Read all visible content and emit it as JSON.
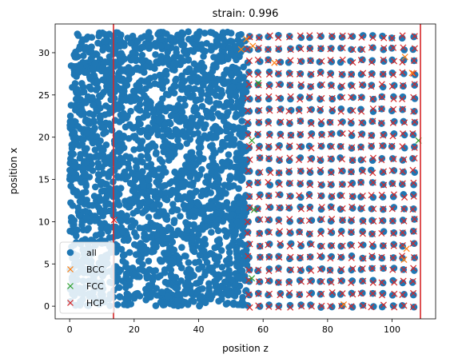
{
  "chart_data": {
    "type": "scatter",
    "title": "strain: 0.996",
    "xlabel": "position z",
    "ylabel": "position x",
    "xlim": [
      -4.5,
      113.5
    ],
    "ylim": [
      -1.5,
      33.4
    ],
    "xticks": [
      0,
      20,
      40,
      60,
      80,
      100
    ],
    "yticks": [
      0,
      5,
      10,
      15,
      20,
      25,
      30
    ],
    "grid": false,
    "legend": "lower-left",
    "vlines": [
      {
        "x": 13.6,
        "color": "#d62728"
      },
      {
        "x": 108.8,
        "color": "#d62728"
      }
    ],
    "series": [
      {
        "name": "all",
        "marker": "circle",
        "color": "#1f77b4",
        "regions": [
          {
            "x_range": [
              0,
              55
            ],
            "y_range": [
              0,
              32.5
            ],
            "arrangement": "disordered"
          },
          {
            "x_range": [
              55.5,
              109
            ],
            "y_range": [
              0,
              32.5
            ],
            "arrangement": "lattice",
            "x_step": 3.2,
            "y_step": 1.45
          }
        ]
      },
      {
        "name": "BCC",
        "marker": "x",
        "color": "#ff7f0e",
        "points": [
          [
            53.2,
            30.4
          ],
          [
            54.8,
            31.6
          ],
          [
            56.8,
            30.8
          ],
          [
            104.5,
            6.8
          ],
          [
            103.7,
            5.5
          ],
          [
            106.2,
            27.6
          ],
          [
            85.0,
            0.2
          ],
          [
            63.5,
            28.8
          ],
          [
            104.0,
            29.5
          ]
        ]
      },
      {
        "name": "FCC",
        "marker": "x",
        "color": "#2ca02c",
        "points": [
          [
            56.5,
            19.6
          ],
          [
            56.5,
            3.3
          ],
          [
            57.2,
            11.4
          ],
          [
            108.2,
            19.6
          ],
          [
            58.5,
            26.4
          ]
        ]
      },
      {
        "name": "HCP",
        "marker": "x",
        "color": "#d62728",
        "regions": [
          {
            "x_range": [
              55.5,
              109
            ],
            "y_range": [
              0,
              32.5
            ],
            "arrangement": "lattice",
            "x_step": 3.2,
            "y_step": 1.45
          }
        ],
        "points": [
          [
            13.8,
            10.2
          ]
        ]
      }
    ]
  }
}
